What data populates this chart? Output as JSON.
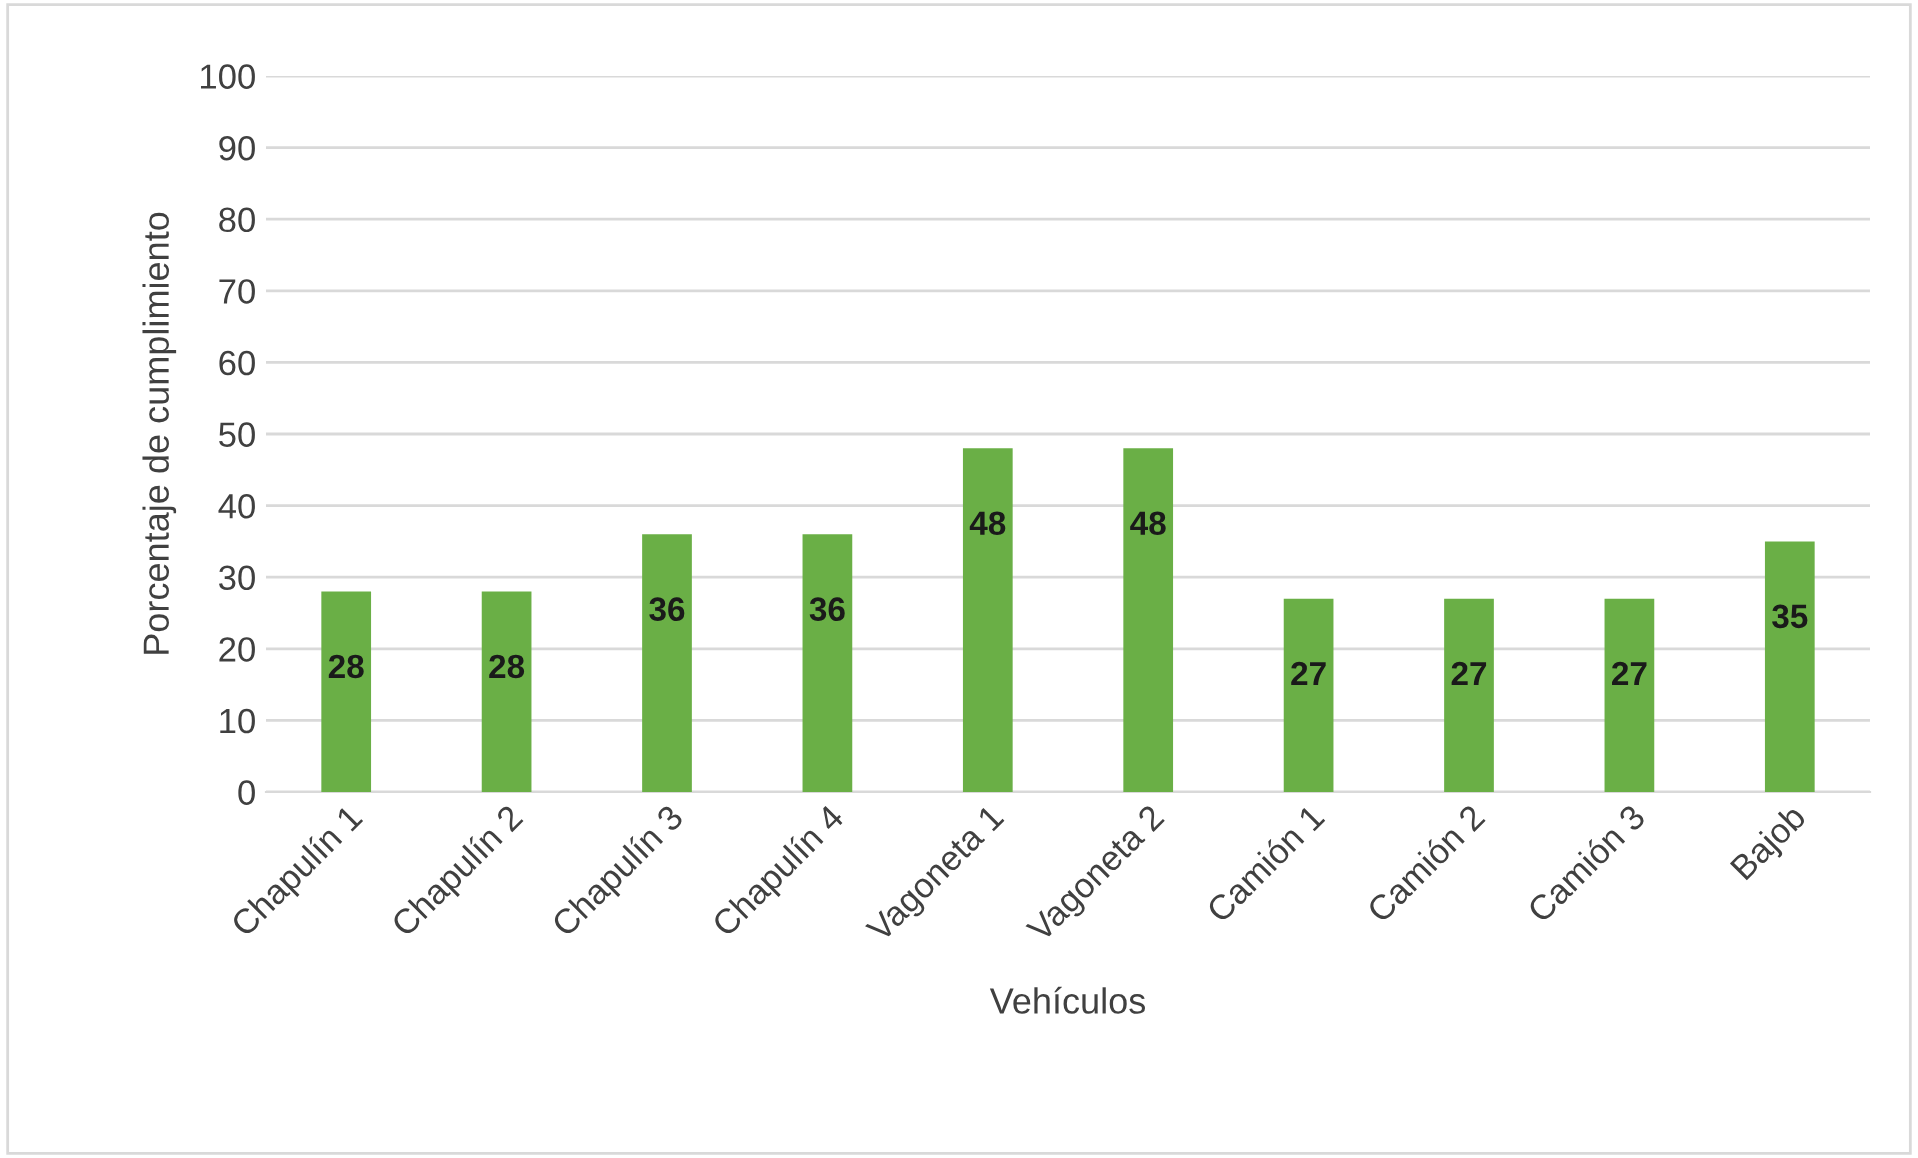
{
  "chart_data": {
    "type": "bar",
    "xlabel": "Vehículos",
    "ylabel": "Porcentaje de cumplimiento",
    "categories": [
      "Chapulín 1",
      "Chapulín 2",
      "Chapulín 3",
      "Chapulín 4",
      "Vagoneta 1",
      "Vagoneta 2",
      "Camión 1",
      "Camión 2",
      "Camión 3",
      "Bajob"
    ],
    "values": [
      28,
      28,
      36,
      36,
      48,
      48,
      27,
      27,
      27,
      35
    ],
    "color": "#6aaf46",
    "ylim": [
      0,
      100
    ],
    "yticks": [
      0,
      10,
      20,
      30,
      40,
      50,
      60,
      70,
      80,
      90,
      100
    ],
    "grid": "y",
    "data_labels": true,
    "legend": false
  }
}
